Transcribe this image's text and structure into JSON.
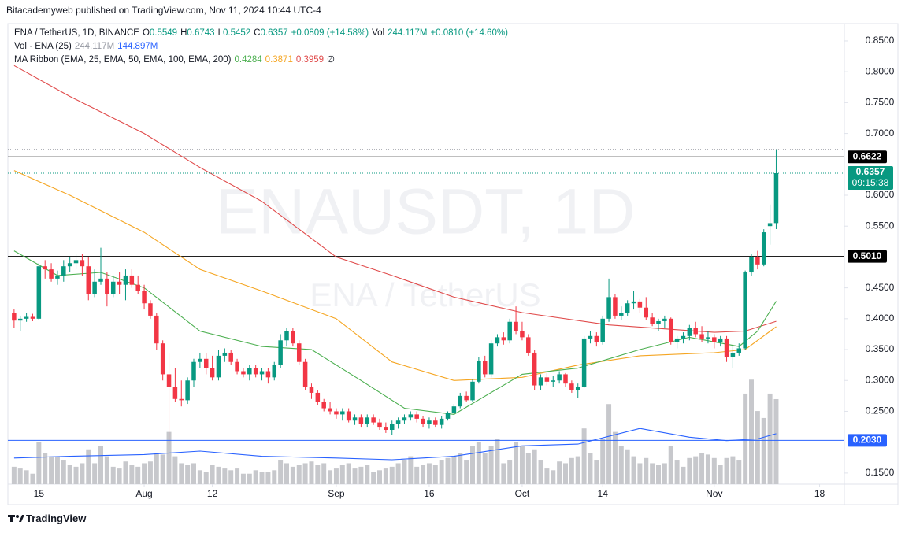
{
  "header": "Bitacademyweb published on TradingView.com, Nov 11, 2024 10:44 UTC-4",
  "legend": [
    [
      {
        "text": "ENA / TetherUS, 1D, BINANCE",
        "color": "#131722"
      },
      {
        "text": "O",
        "color": "#131722"
      },
      {
        "text": "0.5549",
        "color": "#089981"
      },
      {
        "text": "H",
        "color": "#131722"
      },
      {
        "text": "0.6743",
        "color": "#089981"
      },
      {
        "text": "L",
        "color": "#131722"
      },
      {
        "text": "0.5452",
        "color": "#089981"
      },
      {
        "text": "C",
        "color": "#131722"
      },
      {
        "text": "0.6357",
        "color": "#089981"
      },
      {
        "text": "+0.0809 (+14.58%)",
        "color": "#089981"
      },
      {
        "text": "Vol",
        "color": "#131722"
      },
      {
        "text": "244.117M",
        "color": "#089981"
      },
      {
        "text": "+0.0810 (+14.60%)",
        "color": "#089981"
      }
    ],
    [
      {
        "text": "Vol · ENA (25)",
        "color": "#131722"
      },
      {
        "text": "244.117M",
        "color": "#9598a1"
      },
      {
        "text": "144.897M",
        "color": "#2962ff"
      }
    ],
    [
      {
        "text": "MA Ribbon (EMA, 25, EMA, 50, EMA, 100, EMA, 200)",
        "color": "#131722"
      },
      {
        "text": "0.4284",
        "color": "#4caf50"
      },
      {
        "text": "0.3871",
        "color": "#f5a623"
      },
      {
        "text": "0.3959",
        "color": "#e04a4a"
      },
      {
        "text": "∅",
        "color": "#131722"
      }
    ]
  ],
  "watermark": [
    "ENAUSDT, 1D",
    "ENA / TetherUS"
  ],
  "footer": "TradingView",
  "chart_data": {
    "type": "candlestick",
    "xlim": [
      "2024-07-10",
      "2024-11-22"
    ],
    "xticks": [
      {
        "value": "2024-07-15",
        "label": "15"
      },
      {
        "value": "2024-08-01",
        "label": "Aug"
      },
      {
        "value": "2024-08-12",
        "label": "12"
      },
      {
        "value": "2024-09-01",
        "label": "Sep"
      },
      {
        "value": "2024-09-16",
        "label": "16"
      },
      {
        "value": "2024-10-01",
        "label": "Oct"
      },
      {
        "value": "2024-10-14",
        "label": "14"
      },
      {
        "value": "2024-11-01",
        "label": "Nov"
      },
      {
        "value": "2024-11-18",
        "label": "18"
      }
    ],
    "ylim": [
      0.132,
      0.878
    ],
    "yticks": [
      {
        "value": 0.85,
        "label": "0.8500"
      },
      {
        "value": 0.8,
        "label": "0.8000"
      },
      {
        "value": 0.75,
        "label": "0.7500"
      },
      {
        "value": 0.7,
        "label": "0.7000"
      },
      {
        "value": 0.6,
        "label": "0.6000"
      },
      {
        "value": 0.55,
        "label": "0.5500"
      },
      {
        "value": 0.45,
        "label": "0.4500"
      },
      {
        "value": 0.4,
        "label": "0.4000"
      },
      {
        "value": 0.35,
        "label": "0.3500"
      },
      {
        "value": 0.3,
        "label": "0.3000"
      },
      {
        "value": 0.25,
        "label": "0.2500"
      },
      {
        "value": 0.15,
        "label": "0.1500"
      }
    ],
    "volume_ylim": [
      0,
      1322
    ],
    "up_color": "#089981",
    "down_color": "#f23645",
    "volume_color": "#c7c8cc",
    "x": [
      "2024-07-11",
      "2024-07-12",
      "2024-07-13",
      "2024-07-14",
      "2024-07-15",
      "2024-07-16",
      "2024-07-17",
      "2024-07-18",
      "2024-07-19",
      "2024-07-20",
      "2024-07-21",
      "2024-07-22",
      "2024-07-23",
      "2024-07-24",
      "2024-07-25",
      "2024-07-26",
      "2024-07-27",
      "2024-07-28",
      "2024-07-29",
      "2024-07-30",
      "2024-07-31",
      "2024-08-01",
      "2024-08-02",
      "2024-08-03",
      "2024-08-04",
      "2024-08-05",
      "2024-08-06",
      "2024-08-07",
      "2024-08-08",
      "2024-08-09",
      "2024-08-10",
      "2024-08-11",
      "2024-08-12",
      "2024-08-13",
      "2024-08-14",
      "2024-08-15",
      "2024-08-16",
      "2024-08-17",
      "2024-08-18",
      "2024-08-19",
      "2024-08-20",
      "2024-08-21",
      "2024-08-22",
      "2024-08-23",
      "2024-08-24",
      "2024-08-25",
      "2024-08-26",
      "2024-08-27",
      "2024-08-28",
      "2024-08-29",
      "2024-08-30",
      "2024-08-31",
      "2024-09-01",
      "2024-09-02",
      "2024-09-03",
      "2024-09-04",
      "2024-09-05",
      "2024-09-06",
      "2024-09-07",
      "2024-09-08",
      "2024-09-09",
      "2024-09-10",
      "2024-09-11",
      "2024-09-12",
      "2024-09-13",
      "2024-09-14",
      "2024-09-15",
      "2024-09-16",
      "2024-09-17",
      "2024-09-18",
      "2024-09-19",
      "2024-09-20",
      "2024-09-21",
      "2024-09-22",
      "2024-09-23",
      "2024-09-24",
      "2024-09-25",
      "2024-09-26",
      "2024-09-27",
      "2024-09-28",
      "2024-09-29",
      "2024-09-30",
      "2024-10-01",
      "2024-10-02",
      "2024-10-03",
      "2024-10-04",
      "2024-10-05",
      "2024-10-06",
      "2024-10-07",
      "2024-10-08",
      "2024-10-09",
      "2024-10-10",
      "2024-10-11",
      "2024-10-12",
      "2024-10-13",
      "2024-10-14",
      "2024-10-15",
      "2024-10-16",
      "2024-10-17",
      "2024-10-18",
      "2024-10-19",
      "2024-10-20",
      "2024-10-21",
      "2024-10-22",
      "2024-10-23",
      "2024-10-24",
      "2024-10-25",
      "2024-10-26",
      "2024-10-27",
      "2024-10-28",
      "2024-10-29",
      "2024-10-30",
      "2024-10-31",
      "2024-11-01",
      "2024-11-02",
      "2024-11-03",
      "2024-11-04",
      "2024-11-05",
      "2024-11-06",
      "2024-11-07",
      "2024-11-08",
      "2024-11-09",
      "2024-11-10",
      "2024-11-11"
    ],
    "ohlc": [
      [
        0.41,
        0.415,
        0.385,
        0.397
      ],
      [
        0.397,
        0.405,
        0.38,
        0.4
      ],
      [
        0.4,
        0.41,
        0.395,
        0.403
      ],
      [
        0.403,
        0.408,
        0.396,
        0.4
      ],
      [
        0.4,
        0.49,
        0.398,
        0.485
      ],
      [
        0.485,
        0.495,
        0.465,
        0.48
      ],
      [
        0.48,
        0.49,
        0.46,
        0.465
      ],
      [
        0.465,
        0.478,
        0.455,
        0.47
      ],
      [
        0.47,
        0.495,
        0.46,
        0.485
      ],
      [
        0.485,
        0.5,
        0.475,
        0.49
      ],
      [
        0.49,
        0.505,
        0.48,
        0.495
      ],
      [
        0.495,
        0.505,
        0.47,
        0.485
      ],
      [
        0.485,
        0.5,
        0.43,
        0.44
      ],
      [
        0.44,
        0.48,
        0.435,
        0.46
      ],
      [
        0.46,
        0.515,
        0.455,
        0.465
      ],
      [
        0.465,
        0.475,
        0.42,
        0.44
      ],
      [
        0.44,
        0.47,
        0.435,
        0.46
      ],
      [
        0.46,
        0.475,
        0.44,
        0.455
      ],
      [
        0.455,
        0.48,
        0.43,
        0.47
      ],
      [
        0.47,
        0.48,
        0.45,
        0.455
      ],
      [
        0.455,
        0.47,
        0.44,
        0.445
      ],
      [
        0.445,
        0.455,
        0.415,
        0.425
      ],
      [
        0.425,
        0.43,
        0.4,
        0.405
      ],
      [
        0.405,
        0.41,
        0.35,
        0.36
      ],
      [
        0.36,
        0.365,
        0.3,
        0.31
      ],
      [
        0.31,
        0.345,
        0.196,
        0.29
      ],
      [
        0.29,
        0.32,
        0.265,
        0.27
      ],
      [
        0.27,
        0.3,
        0.258,
        0.268
      ],
      [
        0.268,
        0.305,
        0.262,
        0.3
      ],
      [
        0.3,
        0.335,
        0.29,
        0.33
      ],
      [
        0.33,
        0.345,
        0.32,
        0.335
      ],
      [
        0.335,
        0.345,
        0.31,
        0.32
      ],
      [
        0.32,
        0.34,
        0.3,
        0.305
      ],
      [
        0.305,
        0.35,
        0.3,
        0.34
      ],
      [
        0.34,
        0.352,
        0.33,
        0.345
      ],
      [
        0.345,
        0.35,
        0.325,
        0.33
      ],
      [
        0.33,
        0.335,
        0.31,
        0.315
      ],
      [
        0.315,
        0.32,
        0.305,
        0.31
      ],
      [
        0.31,
        0.325,
        0.3,
        0.32
      ],
      [
        0.32,
        0.325,
        0.305,
        0.31
      ],
      [
        0.31,
        0.32,
        0.3,
        0.315
      ],
      [
        0.315,
        0.32,
        0.295,
        0.305
      ],
      [
        0.305,
        0.33,
        0.3,
        0.325
      ],
      [
        0.325,
        0.375,
        0.32,
        0.365
      ],
      [
        0.365,
        0.385,
        0.355,
        0.38
      ],
      [
        0.38,
        0.385,
        0.355,
        0.36
      ],
      [
        0.36,
        0.365,
        0.325,
        0.33
      ],
      [
        0.33,
        0.335,
        0.285,
        0.29
      ],
      [
        0.29,
        0.295,
        0.27,
        0.28
      ],
      [
        0.28,
        0.285,
        0.26,
        0.265
      ],
      [
        0.265,
        0.27,
        0.25,
        0.255
      ],
      [
        0.255,
        0.265,
        0.245,
        0.25
      ],
      [
        0.25,
        0.255,
        0.238,
        0.245
      ],
      [
        0.245,
        0.255,
        0.235,
        0.25
      ],
      [
        0.25,
        0.255,
        0.232,
        0.235
      ],
      [
        0.235,
        0.245,
        0.228,
        0.24
      ],
      [
        0.24,
        0.245,
        0.225,
        0.23
      ],
      [
        0.23,
        0.245,
        0.225,
        0.24
      ],
      [
        0.24,
        0.245,
        0.228,
        0.232
      ],
      [
        0.232,
        0.238,
        0.22,
        0.225
      ],
      [
        0.225,
        0.232,
        0.215,
        0.22
      ],
      [
        0.22,
        0.235,
        0.212,
        0.23
      ],
      [
        0.23,
        0.24,
        0.222,
        0.235
      ],
      [
        0.235,
        0.245,
        0.23,
        0.24
      ],
      [
        0.24,
        0.25,
        0.235,
        0.245
      ],
      [
        0.245,
        0.25,
        0.232,
        0.238
      ],
      [
        0.238,
        0.242,
        0.225,
        0.23
      ],
      [
        0.23,
        0.24,
        0.222,
        0.235
      ],
      [
        0.235,
        0.24,
        0.225,
        0.228
      ],
      [
        0.228,
        0.242,
        0.222,
        0.238
      ],
      [
        0.238,
        0.25,
        0.235,
        0.248
      ],
      [
        0.248,
        0.262,
        0.245,
        0.258
      ],
      [
        0.258,
        0.28,
        0.255,
        0.275
      ],
      [
        0.275,
        0.282,
        0.265,
        0.268
      ],
      [
        0.268,
        0.302,
        0.265,
        0.298
      ],
      [
        0.298,
        0.338,
        0.295,
        0.332
      ],
      [
        0.332,
        0.34,
        0.305,
        0.31
      ],
      [
        0.31,
        0.365,
        0.305,
        0.36
      ],
      [
        0.36,
        0.375,
        0.355,
        0.37
      ],
      [
        0.37,
        0.378,
        0.358,
        0.365
      ],
      [
        0.365,
        0.4,
        0.36,
        0.395
      ],
      [
        0.395,
        0.42,
        0.375,
        0.38
      ],
      [
        0.38,
        0.395,
        0.365,
        0.37
      ],
      [
        0.37,
        0.375,
        0.34,
        0.345
      ],
      [
        0.345,
        0.35,
        0.285,
        0.292
      ],
      [
        0.292,
        0.31,
        0.285,
        0.305
      ],
      [
        0.305,
        0.312,
        0.292,
        0.298
      ],
      [
        0.298,
        0.308,
        0.29,
        0.3
      ],
      [
        0.3,
        0.315,
        0.295,
        0.31
      ],
      [
        0.31,
        0.312,
        0.29,
        0.295
      ],
      [
        0.295,
        0.3,
        0.28,
        0.285
      ],
      [
        0.285,
        0.295,
        0.272,
        0.29
      ],
      [
        0.29,
        0.372,
        0.288,
        0.368
      ],
      [
        0.368,
        0.38,
        0.36,
        0.372
      ],
      [
        0.372,
        0.378,
        0.355,
        0.362
      ],
      [
        0.362,
        0.405,
        0.358,
        0.4
      ],
      [
        0.4,
        0.465,
        0.395,
        0.435
      ],
      [
        0.435,
        0.44,
        0.4,
        0.405
      ],
      [
        0.405,
        0.42,
        0.398,
        0.41
      ],
      [
        0.41,
        0.43,
        0.405,
        0.425
      ],
      [
        0.425,
        0.445,
        0.415,
        0.428
      ],
      [
        0.428,
        0.432,
        0.41,
        0.418
      ],
      [
        0.418,
        0.435,
        0.398,
        0.402
      ],
      [
        0.402,
        0.41,
        0.388,
        0.392
      ],
      [
        0.392,
        0.4,
        0.38,
        0.396
      ],
      [
        0.396,
        0.405,
        0.385,
        0.4
      ],
      [
        0.4,
        0.402,
        0.358,
        0.362
      ],
      [
        0.362,
        0.372,
        0.352,
        0.368
      ],
      [
        0.368,
        0.378,
        0.36,
        0.372
      ],
      [
        0.372,
        0.39,
        0.365,
        0.385
      ],
      [
        0.385,
        0.395,
        0.37,
        0.375
      ],
      [
        0.375,
        0.388,
        0.362,
        0.368
      ],
      [
        0.368,
        0.38,
        0.36,
        0.37
      ],
      [
        0.37,
        0.375,
        0.352,
        0.362
      ],
      [
        0.362,
        0.372,
        0.355,
        0.368
      ],
      [
        0.368,
        0.372,
        0.33,
        0.338
      ],
      [
        0.338,
        0.355,
        0.32,
        0.345
      ],
      [
        0.345,
        0.36,
        0.34,
        0.352
      ],
      [
        0.352,
        0.478,
        0.35,
        0.475
      ],
      [
        0.475,
        0.505,
        0.47,
        0.5
      ],
      [
        0.5,
        0.51,
        0.48,
        0.488
      ],
      [
        0.488,
        0.545,
        0.485,
        0.54
      ],
      [
        0.55,
        0.585,
        0.52,
        0.5548
      ],
      [
        0.5549,
        0.6743,
        0.5452,
        0.6357
      ]
    ],
    "volume": [
      50,
      45,
      40,
      30,
      120,
      90,
      80,
      80,
      70,
      55,
      50,
      60,
      100,
      60,
      110,
      80,
      50,
      45,
      65,
      55,
      50,
      60,
      65,
      90,
      85,
      150,
      80,
      60,
      55,
      60,
      40,
      35,
      55,
      50,
      45,
      40,
      45,
      30,
      30,
      40,
      35,
      35,
      40,
      70,
      60,
      50,
      55,
      60,
      65,
      55,
      60,
      40,
      45,
      55,
      60,
      45,
      50,
      55,
      35,
      40,
      45,
      50,
      60,
      70,
      80,
      50,
      55,
      60,
      55,
      70,
      75,
      80,
      90,
      70,
      110,
      120,
      90,
      110,
      130,
      60,
      70,
      120,
      110,
      90,
      100,
      70,
      45,
      40,
      65,
      60,
      75,
      80,
      160,
      90,
      70,
      130,
      230,
      150,
      110,
      100,
      80,
      60,
      75,
      60,
      55,
      60,
      110,
      70,
      50,
      75,
      80,
      90,
      85,
      75,
      55,
      75,
      80,
      70,
      260,
      300,
      210,
      190,
      260,
      244.117
    ],
    "lines": [
      {
        "name": "EMA 200",
        "color": "#e04a4a",
        "axis": "price",
        "x": [
          "2024-07-11",
          "2024-07-20",
          "2024-08-01",
          "2024-08-10",
          "2024-08-20",
          "2024-09-01",
          "2024-09-10",
          "2024-09-20",
          "2024-10-01",
          "2024-10-15",
          "2024-11-01",
          "2024-11-06",
          "2024-11-11"
        ],
        "values": [
          0.81,
          0.76,
          0.7,
          0.645,
          0.59,
          0.5,
          0.47,
          0.435,
          0.41,
          0.39,
          0.378,
          0.38,
          0.3959
        ]
      },
      {
        "name": "EMA 50",
        "color": "#f5a623",
        "axis": "price",
        "x": [
          "2024-07-11",
          "2024-07-20",
          "2024-08-01",
          "2024-08-10",
          "2024-08-20",
          "2024-09-01",
          "2024-09-10",
          "2024-09-20",
          "2024-10-01",
          "2024-10-10",
          "2024-10-20",
          "2024-11-01",
          "2024-11-06",
          "2024-11-11"
        ],
        "values": [
          0.64,
          0.6,
          0.54,
          0.48,
          0.445,
          0.4,
          0.33,
          0.3,
          0.305,
          0.325,
          0.34,
          0.345,
          0.35,
          0.3871
        ]
      },
      {
        "name": "EMA 25",
        "color": "#4caf50",
        "axis": "price",
        "x": [
          "2024-07-11",
          "2024-07-18",
          "2024-07-25",
          "2024-08-01",
          "2024-08-10",
          "2024-08-20",
          "2024-08-28",
          "2024-09-05",
          "2024-09-12",
          "2024-09-20",
          "2024-10-01",
          "2024-10-10",
          "2024-10-20",
          "2024-10-28",
          "2024-11-05",
          "2024-11-08",
          "2024-11-11"
        ],
        "values": [
          0.51,
          0.47,
          0.475,
          0.45,
          0.38,
          0.355,
          0.35,
          0.3,
          0.255,
          0.245,
          0.31,
          0.32,
          0.35,
          0.37,
          0.355,
          0.38,
          0.4284
        ]
      },
      {
        "name": "Volume MA 25",
        "color": "#2962ff",
        "axis": "volume",
        "x": [
          "2024-07-11",
          "2024-07-20",
          "2024-08-01",
          "2024-08-10",
          "2024-08-20",
          "2024-09-01",
          "2024-09-10",
          "2024-09-20",
          "2024-10-01",
          "2024-10-10",
          "2024-10-20",
          "2024-10-28",
          "2024-11-03",
          "2024-11-08",
          "2024-11-11"
        ],
        "values": [
          75,
          80,
          85,
          95,
          80,
          75,
          70,
          80,
          110,
          115,
          160,
          135,
          125,
          130,
          144.897
        ]
      }
    ],
    "levels": [
      {
        "value": 0.6622,
        "label": "0.6622",
        "color": "#000000"
      },
      {
        "value": 0.501,
        "label": "0.5010",
        "color": "#000000"
      },
      {
        "value": 0.203,
        "label": "0.2030",
        "color": "#2962ff"
      }
    ],
    "last_price": {
      "value": 0.6357,
      "label": "0.6357",
      "countdown": "09:15:38",
      "color": "#089981"
    }
  }
}
